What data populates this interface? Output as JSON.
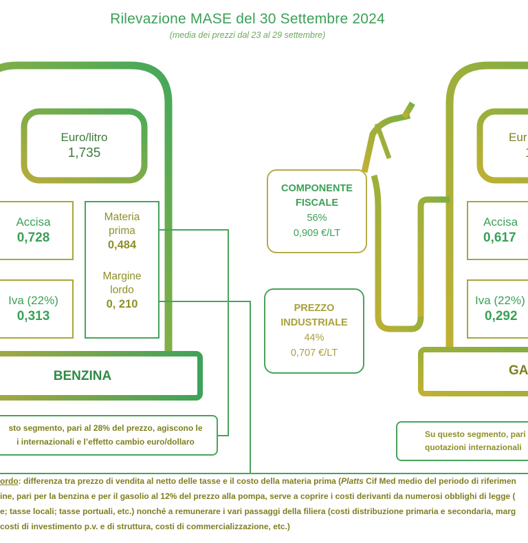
{
  "header": {
    "title": "Rilevazione MASE del 30 Settembre 2024",
    "subtitle": "(media dei prezzi dal 23 al 29 settembre)"
  },
  "benzina": {
    "name": "BENZINA",
    "price_label": "Euro/litro",
    "price_value": "1,735",
    "accisa_label": "Accisa",
    "accisa_value": "0,728",
    "iva_label": "Iva (22%)",
    "iva_value": "0,313",
    "materia_label_1": "Materia",
    "materia_label_2": "prima",
    "materia_value": "0,484",
    "margine_label_1": "Margine",
    "margine_label_2": "lordo",
    "margine_value": "0, 210",
    "note_line_1": "sto segmento, pari al 28% del prezzo, agiscono le",
    "note_line_2": "i internazionali e l’effetto cambio euro/dollaro"
  },
  "gasolio": {
    "name": "GA",
    "price_label": "Eur",
    "price_value": "1",
    "accisa_label": "Accisa",
    "accisa_value": "0,617",
    "iva_label": "Iva (22%)",
    "iva_value": "0,292",
    "note_line_1": "Su questo segmento, pari",
    "note_line_2": "quotazioni internazionali"
  },
  "componente_fiscale": {
    "title_1": "COMPONENTE",
    "title_2": "FISCALE",
    "percent": "56%",
    "value": "0,909 €/LT"
  },
  "prezzo_industriale": {
    "title_1": "PREZZO",
    "title_2": "INDUSTRIALE",
    "percent": "44%",
    "value": "0,707 €/LT"
  },
  "footnote": {
    "line1_term": "ordo",
    "line1_text": ": differenza tra prezzo di vendita al netto delle tasse e il costo della materia prima (",
    "line1_platts": "Platts",
    "line1_rest": " Cif Med medio del periodo di riferimen",
    "line2": "ine, pari per la benzina e per il gasolio al 12% del prezzo alla pompa, serve a coprire i costi derivanti da numerosi obblighi di legge (",
    "line3": "e; tasse locali; tasse portuali, etc.) nonché a remunerare i vari passaggi della filiera (costi distribuzione primaria e secondaria, marg",
    "line4": " costi di investimento p.v. e di struttura, costi di commercializzazione, etc.)"
  },
  "colors": {
    "green": "#3aa056",
    "olive": "#a8a63a",
    "text_olive": "#7f7e20"
  }
}
